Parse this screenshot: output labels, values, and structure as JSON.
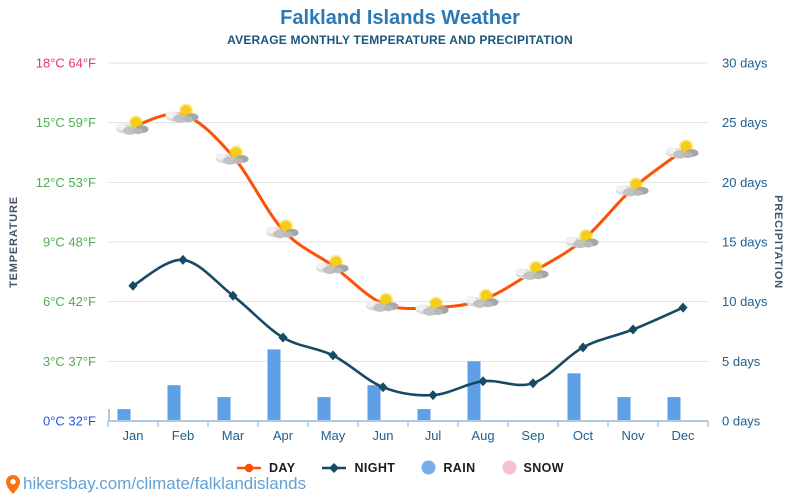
{
  "header": {
    "title": "Falkland Islands Weather",
    "subtitle": "AVERAGE MONTHLY TEMPERATURE AND PRECIPITATION"
  },
  "axes": {
    "temp_axis_title": "TEMPERATURE",
    "precip_axis_title": "PRECIPITATION",
    "temp_ticks": [
      {
        "value": 0,
        "label": "0°C 32°F",
        "color_role": "temp_freezing"
      },
      {
        "value": 3,
        "label": "3°C 37°F",
        "color_role": "temp_mild"
      },
      {
        "value": 6,
        "label": "6°C 42°F",
        "color_role": "temp_mild"
      },
      {
        "value": 9,
        "label": "9°C 48°F",
        "color_role": "temp_mild"
      },
      {
        "value": 12,
        "label": "12°C 53°F",
        "color_role": "temp_mild"
      },
      {
        "value": 15,
        "label": "15°C 59°F",
        "color_role": "temp_mild"
      },
      {
        "value": 18,
        "label": "18°C 64°F",
        "color_role": "temp_hot"
      }
    ],
    "precip_ticks": [
      {
        "value": 0,
        "label": "0 days"
      },
      {
        "value": 5,
        "label": "5 days"
      },
      {
        "value": 10,
        "label": "10 days"
      },
      {
        "value": 15,
        "label": "15 days"
      },
      {
        "value": 20,
        "label": "20 days"
      },
      {
        "value": 25,
        "label": "25 days"
      },
      {
        "value": 30,
        "label": "30 days"
      }
    ]
  },
  "chart_data": {
    "type": "line+bar",
    "title": "Falkland Islands Weather",
    "subtitle": "AVERAGE MONTHLY TEMPERATURE AND PRECIPITATION",
    "categories": [
      "Jan",
      "Feb",
      "Mar",
      "Apr",
      "May",
      "Jun",
      "Jul",
      "Aug",
      "Sep",
      "Oct",
      "Nov",
      "Dec"
    ],
    "temp_axis_range_c": [
      0,
      18
    ],
    "precip_axis_range_days": [
      0,
      30
    ],
    "grid": true,
    "legend_position": "bottom",
    "series": [
      {
        "name": "DAY",
        "type": "line",
        "unit": "°C",
        "values": [
          14.8,
          15.4,
          13.3,
          9.6,
          7.8,
          5.9,
          5.7,
          6.1,
          7.5,
          9.1,
          11.7,
          13.6
        ],
        "marker": "sun-behind-cloud-icon"
      },
      {
        "name": "NIGHT",
        "type": "line",
        "unit": "°C",
        "values": [
          6.8,
          8.1,
          6.3,
          4.2,
          3.3,
          1.7,
          1.3,
          2.0,
          1.9,
          3.7,
          4.6,
          5.7
        ],
        "marker": "diamond"
      },
      {
        "name": "RAIN",
        "type": "bar",
        "unit": "days",
        "values": [
          1,
          3,
          2,
          6,
          2,
          3,
          1,
          5,
          0,
          4,
          2,
          2
        ]
      },
      {
        "name": "SNOW",
        "type": "bar",
        "unit": "days",
        "values": [
          0,
          0,
          0,
          0,
          0,
          0,
          0,
          0,
          0,
          0,
          0,
          0
        ]
      }
    ]
  },
  "legend": {
    "items": [
      {
        "label": "DAY",
        "marker": "orange-line-dot"
      },
      {
        "label": "NIGHT",
        "marker": "navy-line-diamond"
      },
      {
        "label": "RAIN",
        "marker": "blue-circle"
      },
      {
        "label": "SNOW",
        "marker": "pink-circle"
      }
    ]
  },
  "footer": {
    "link": "hikersbay.com/climate/falklandislands"
  },
  "icons": {
    "day_marker": "sun-behind-cloud-icon",
    "footer": "location-pin-icon"
  },
  "colors": {
    "day": "#fd5108",
    "night": "#174a63",
    "rain": "#5f9fe6",
    "snow": "#f6c1ce",
    "grid": "#e3e3e3",
    "axis": "#aec9e4",
    "label_navy": "#1e6090",
    "title": "#2b79b4",
    "subtitle": "#1a567d",
    "axis_title": "#44546a",
    "temp_hot": "#ee3368",
    "temp_mild": "#4cae4f",
    "temp_freezing": "#2456e0",
    "link": "#64a1d2",
    "legend_text": "#1b1b1b",
    "pin": "#f97316"
  }
}
